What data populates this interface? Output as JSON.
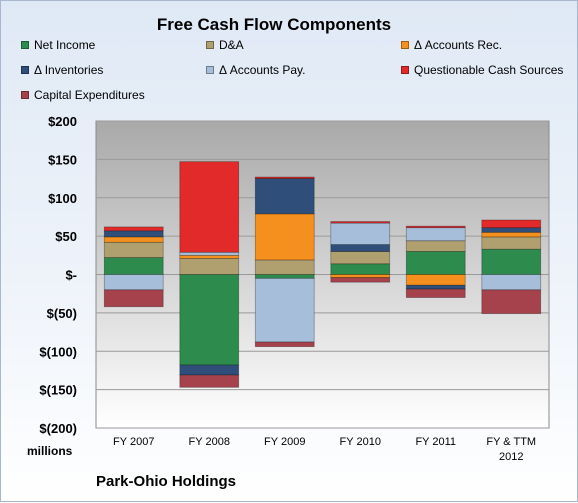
{
  "chart_data": {
    "type": "bar",
    "stacked": true,
    "title": "Free Cash Flow Components",
    "units_label": "millions",
    "footer": "Park-Ohio Holdings",
    "categories": [
      "FY 2007",
      "FY 2008",
      "FY 2009",
      "FY 2010",
      "FY 2011",
      "FY & TTM 2012"
    ],
    "ylim": [
      -200,
      200
    ],
    "yticks": [
      -200,
      -150,
      -100,
      -50,
      0,
      50,
      100,
      150,
      200
    ],
    "ytick_labels": [
      "$(200)",
      "$(150)",
      "$(100)",
      "$(50)",
      "$-",
      "$50",
      "$100",
      "$150",
      "$200"
    ],
    "grid": true,
    "legend_position": "top",
    "series": [
      {
        "name": "Net Income",
        "color": "#2e8b4e",
        "values": [
          22,
          -118,
          -5,
          14,
          30,
          33
        ]
      },
      {
        "name": "D&A",
        "color": "#b0a070",
        "values": [
          20,
          21,
          19,
          16,
          14,
          16
        ]
      },
      {
        "name": "Δ Accounts Rec.",
        "color": "#f5901e",
        "values": [
          7,
          4,
          60,
          -4,
          -14,
          6
        ]
      },
      {
        "name": "Δ Inventories",
        "color": "#2f4f7a",
        "values": [
          8,
          -13,
          46,
          9,
          -5,
          6
        ]
      },
      {
        "name": "Δ Accounts Pay.",
        "color": "#a7bedb",
        "values": [
          -20,
          4,
          -83,
          28,
          17,
          -20
        ]
      },
      {
        "name": "Questionable Cash Sources",
        "color": "#e32a2a",
        "values": [
          5,
          118,
          2,
          2,
          2,
          10
        ]
      },
      {
        "name": "Capital Expenditures",
        "color": "#a5424c",
        "values": [
          -22,
          -16,
          -6,
          -6,
          -11,
          -31
        ]
      }
    ]
  }
}
